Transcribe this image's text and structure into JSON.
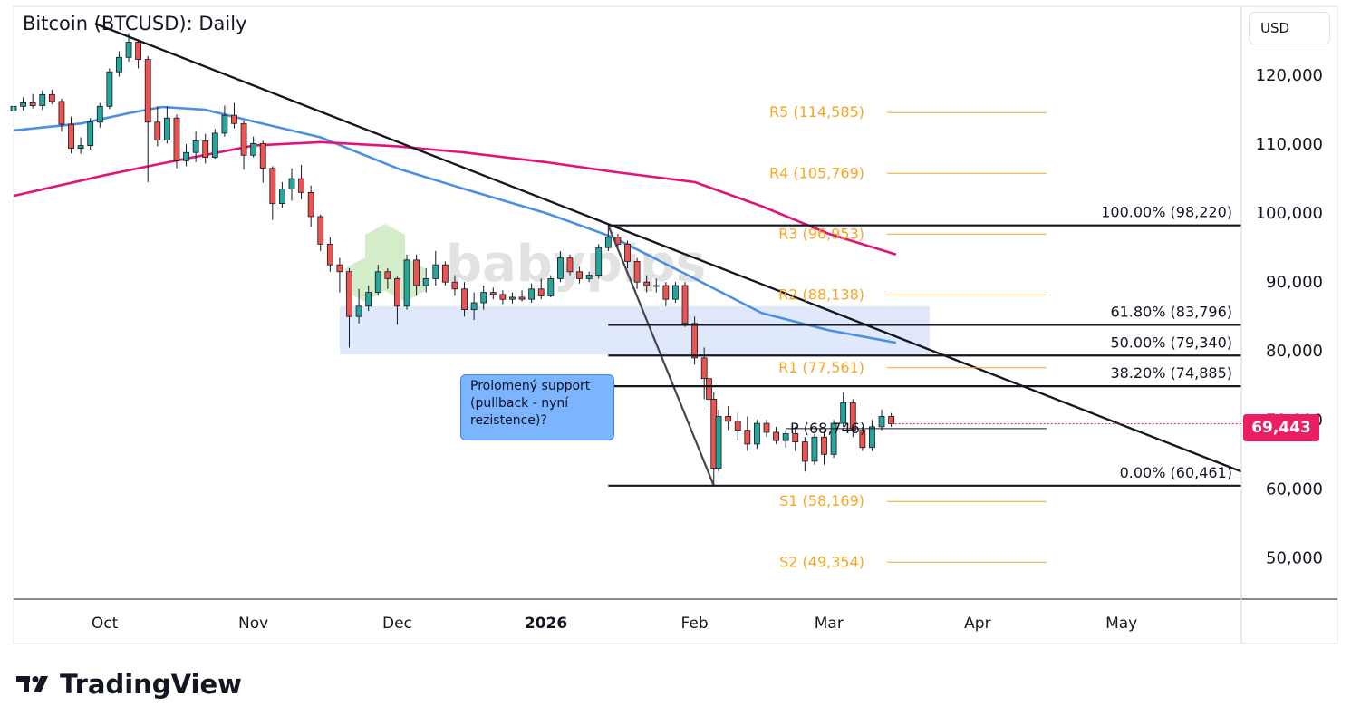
{
  "title": "Bitcoin (BTCUSD): Daily",
  "currency": "USD",
  "last_price_label": "69,443",
  "watermark": "babypips",
  "callout_lines": [
    "Prolomený support",
    "(pullback - nyní",
    "rezistence)?"
  ],
  "branding": "TradingView",
  "colors": {
    "up_candle": "#26a69a",
    "down_candle": "#ef5350",
    "sma_fast": "#4a90e2",
    "sma_slow": "#e0147a",
    "pivot": "#f5a623",
    "fib": "#131722",
    "support_zone": "#dde6fb",
    "price_badge": "#e91e63"
  },
  "chart_data": {
    "type": "candlestick",
    "title": "Bitcoin (BTCUSD): Daily",
    "ylim": [
      44000,
      130000
    ],
    "y_ticks": [
      50000,
      60000,
      70000,
      80000,
      90000,
      100000,
      110000,
      120000
    ],
    "y_tick_labels": [
      "50,000",
      "60,000",
      "70,000",
      "80,000",
      "90,000",
      "100,000",
      "110,000",
      "120,000"
    ],
    "x_tick_labels": [
      "Oct",
      "Nov",
      "Dec",
      "2026",
      "Feb",
      "Mar",
      "Apr",
      "May"
    ],
    "x_tick_dates": [
      "2025-10-01",
      "2025-11-01",
      "2025-12-01",
      "2026-01-01",
      "2026-02-01",
      "2026-03-01",
      "2026-04-01",
      "2026-05-01"
    ],
    "xlim": [
      "2025-09-12",
      "2026-05-26"
    ],
    "last_price": 69443,
    "candles": [
      {
        "date": "2025-09-12",
        "open": 114800,
        "high": 116500,
        "low": 114200,
        "close": 115500
      },
      {
        "date": "2025-09-14",
        "open": 115500,
        "high": 116800,
        "low": 114900,
        "close": 116000
      },
      {
        "date": "2025-09-16",
        "open": 116000,
        "high": 117300,
        "low": 115200,
        "close": 115600
      },
      {
        "date": "2025-09-18",
        "open": 115600,
        "high": 117800,
        "low": 115000,
        "close": 117200
      },
      {
        "date": "2025-09-20",
        "open": 117200,
        "high": 117900,
        "low": 115800,
        "close": 116200
      },
      {
        "date": "2025-09-22",
        "open": 116200,
        "high": 116600,
        "low": 111800,
        "close": 112900
      },
      {
        "date": "2025-09-24",
        "open": 112900,
        "high": 114000,
        "low": 108700,
        "close": 109400
      },
      {
        "date": "2025-09-26",
        "open": 109400,
        "high": 111000,
        "low": 108600,
        "close": 109800
      },
      {
        "date": "2025-09-28",
        "open": 109800,
        "high": 113800,
        "low": 109200,
        "close": 113200
      },
      {
        "date": "2025-09-30",
        "open": 113200,
        "high": 116000,
        "low": 112400,
        "close": 115500
      },
      {
        "date": "2025-10-02",
        "open": 115500,
        "high": 121000,
        "low": 115100,
        "close": 120500
      },
      {
        "date": "2025-10-04",
        "open": 120500,
        "high": 123500,
        "low": 119800,
        "close": 122600
      },
      {
        "date": "2025-10-06",
        "open": 122600,
        "high": 126100,
        "low": 122000,
        "close": 124800
      },
      {
        "date": "2025-10-08",
        "open": 124800,
        "high": 125200,
        "low": 121000,
        "close": 122300
      },
      {
        "date": "2025-10-10",
        "open": 122300,
        "high": 122800,
        "low": 104500,
        "close": 113200
      },
      {
        "date": "2025-10-12",
        "open": 113200,
        "high": 115500,
        "low": 109700,
        "close": 110600
      },
      {
        "date": "2025-10-14",
        "open": 110600,
        "high": 115500,
        "low": 110100,
        "close": 113800
      },
      {
        "date": "2025-10-16",
        "open": 113800,
        "high": 114300,
        "low": 106500,
        "close": 107600
      },
      {
        "date": "2025-10-18",
        "open": 107600,
        "high": 110000,
        "low": 106800,
        "close": 108800
      },
      {
        "date": "2025-10-20",
        "open": 108800,
        "high": 111900,
        "low": 107400,
        "close": 110500
      },
      {
        "date": "2025-10-22",
        "open": 110500,
        "high": 111500,
        "low": 107200,
        "close": 108100
      },
      {
        "date": "2025-10-24",
        "open": 108100,
        "high": 112200,
        "low": 107900,
        "close": 111600
      },
      {
        "date": "2025-10-26",
        "open": 111600,
        "high": 115600,
        "low": 111100,
        "close": 114200
      },
      {
        "date": "2025-10-28",
        "open": 114200,
        "high": 116000,
        "low": 112300,
        "close": 113000
      },
      {
        "date": "2025-10-30",
        "open": 113000,
        "high": 113400,
        "low": 106300,
        "close": 108400
      },
      {
        "date": "2025-11-01",
        "open": 108400,
        "high": 111100,
        "low": 108100,
        "close": 110100
      },
      {
        "date": "2025-11-03",
        "open": 110100,
        "high": 110500,
        "low": 104400,
        "close": 106500
      },
      {
        "date": "2025-11-05",
        "open": 106500,
        "high": 106800,
        "low": 99000,
        "close": 101400
      },
      {
        "date": "2025-11-07",
        "open": 101400,
        "high": 104500,
        "low": 100800,
        "close": 103500
      },
      {
        "date": "2025-11-09",
        "open": 103500,
        "high": 106500,
        "low": 101800,
        "close": 105000
      },
      {
        "date": "2025-11-11",
        "open": 105000,
        "high": 107000,
        "low": 102000,
        "close": 103000
      },
      {
        "date": "2025-11-13",
        "open": 103000,
        "high": 104000,
        "low": 98000,
        "close": 99500
      },
      {
        "date": "2025-11-15",
        "open": 99500,
        "high": 99800,
        "low": 94500,
        "close": 95500
      },
      {
        "date": "2025-11-17",
        "open": 95500,
        "high": 96500,
        "low": 91500,
        "close": 92500
      },
      {
        "date": "2025-11-19",
        "open": 92500,
        "high": 93500,
        "low": 88500,
        "close": 91500
      },
      {
        "date": "2025-11-21",
        "open": 91500,
        "high": 92000,
        "low": 80500,
        "close": 85000
      },
      {
        "date": "2025-11-23",
        "open": 85000,
        "high": 89000,
        "low": 84000,
        "close": 86500
      },
      {
        "date": "2025-11-25",
        "open": 86500,
        "high": 89500,
        "low": 85800,
        "close": 88500
      },
      {
        "date": "2025-11-27",
        "open": 88500,
        "high": 92500,
        "low": 88000,
        "close": 91500
      },
      {
        "date": "2025-11-29",
        "open": 91500,
        "high": 92000,
        "low": 89000,
        "close": 90500
      },
      {
        "date": "2025-12-01",
        "open": 90500,
        "high": 90800,
        "low": 83800,
        "close": 86500
      },
      {
        "date": "2025-12-03",
        "open": 86500,
        "high": 94000,
        "low": 86000,
        "close": 93200
      },
      {
        "date": "2025-12-05",
        "open": 93200,
        "high": 94000,
        "low": 88000,
        "close": 89500
      },
      {
        "date": "2025-12-07",
        "open": 89500,
        "high": 92000,
        "low": 88500,
        "close": 90500
      },
      {
        "date": "2025-12-09",
        "open": 90500,
        "high": 94500,
        "low": 89500,
        "close": 92500
      },
      {
        "date": "2025-12-11",
        "open": 92500,
        "high": 93000,
        "low": 89500,
        "close": 90000
      },
      {
        "date": "2025-12-13",
        "open": 90000,
        "high": 91000,
        "low": 88000,
        "close": 89000
      },
      {
        "date": "2025-12-15",
        "open": 89000,
        "high": 90000,
        "low": 85000,
        "close": 86000
      },
      {
        "date": "2025-12-17",
        "open": 86000,
        "high": 88500,
        "low": 84500,
        "close": 87000
      },
      {
        "date": "2025-12-19",
        "open": 87000,
        "high": 89500,
        "low": 86000,
        "close": 88500
      },
      {
        "date": "2025-12-21",
        "open": 88500,
        "high": 89200,
        "low": 87500,
        "close": 88200
      },
      {
        "date": "2025-12-23",
        "open": 88200,
        "high": 88800,
        "low": 86800,
        "close": 87500
      },
      {
        "date": "2025-12-25",
        "open": 87500,
        "high": 88500,
        "low": 86900,
        "close": 87800
      },
      {
        "date": "2025-12-27",
        "open": 87800,
        "high": 88800,
        "low": 87200,
        "close": 87500
      },
      {
        "date": "2025-12-29",
        "open": 87500,
        "high": 89800,
        "low": 87000,
        "close": 89000
      },
      {
        "date": "2025-12-31",
        "open": 89000,
        "high": 90500,
        "low": 87500,
        "close": 88000
      },
      {
        "date": "2026-01-02",
        "open": 88000,
        "high": 91000,
        "low": 87800,
        "close": 90500
      },
      {
        "date": "2026-01-04",
        "open": 90500,
        "high": 94500,
        "low": 90000,
        "close": 93500
      },
      {
        "date": "2026-01-06",
        "open": 93500,
        "high": 94000,
        "low": 91000,
        "close": 91500
      },
      {
        "date": "2026-01-08",
        "open": 91500,
        "high": 92200,
        "low": 89800,
        "close": 90500
      },
      {
        "date": "2026-01-10",
        "open": 90500,
        "high": 91500,
        "low": 90000,
        "close": 91000
      },
      {
        "date": "2026-01-12",
        "open": 91000,
        "high": 95500,
        "low": 90500,
        "close": 95000
      },
      {
        "date": "2026-01-14",
        "open": 95000,
        "high": 97900,
        "low": 94500,
        "close": 96500
      },
      {
        "date": "2026-01-16",
        "open": 96500,
        "high": 97000,
        "low": 94800,
        "close": 95500
      },
      {
        "date": "2026-01-18",
        "open": 95500,
        "high": 96000,
        "low": 92000,
        "close": 93000
      },
      {
        "date": "2026-01-20",
        "open": 93000,
        "high": 93500,
        "low": 89000,
        "close": 90000
      },
      {
        "date": "2026-01-22",
        "open": 90000,
        "high": 91000,
        "low": 88500,
        "close": 89500
      },
      {
        "date": "2026-01-24",
        "open": 89500,
        "high": 90500,
        "low": 88500,
        "close": 89500
      },
      {
        "date": "2026-01-26",
        "open": 89500,
        "high": 90000,
        "low": 86500,
        "close": 87500
      },
      {
        "date": "2026-01-28",
        "open": 87500,
        "high": 90000,
        "low": 87000,
        "close": 89500
      },
      {
        "date": "2026-01-30",
        "open": 89500,
        "high": 90000,
        "low": 83500,
        "close": 84000
      },
      {
        "date": "2026-02-01",
        "open": 84000,
        "high": 85000,
        "low": 78000,
        "close": 79000
      },
      {
        "date": "2026-02-03",
        "open": 79000,
        "high": 80500,
        "low": 73000,
        "close": 76000
      },
      {
        "date": "2026-02-04",
        "open": 76000,
        "high": 77000,
        "low": 71500,
        "close": 73000
      },
      {
        "date": "2026-02-05",
        "open": 73000,
        "high": 74000,
        "low": 60461,
        "close": 63000
      },
      {
        "date": "2026-02-06",
        "open": 63000,
        "high": 71500,
        "low": 62500,
        "close": 70500
      },
      {
        "date": "2026-02-08",
        "open": 70500,
        "high": 72000,
        "low": 68500,
        "close": 69800
      },
      {
        "date": "2026-02-10",
        "open": 69800,
        "high": 71000,
        "low": 67000,
        "close": 68500
      },
      {
        "date": "2026-02-12",
        "open": 68500,
        "high": 70500,
        "low": 65500,
        "close": 66500
      },
      {
        "date": "2026-02-14",
        "open": 66500,
        "high": 70000,
        "low": 65800,
        "close": 69500
      },
      {
        "date": "2026-02-16",
        "open": 69500,
        "high": 70000,
        "low": 67500,
        "close": 68200
      },
      {
        "date": "2026-02-18",
        "open": 68200,
        "high": 69000,
        "low": 66500,
        "close": 67000
      },
      {
        "date": "2026-02-20",
        "open": 67000,
        "high": 68500,
        "low": 66000,
        "close": 68000
      },
      {
        "date": "2026-02-22",
        "open": 68000,
        "high": 69000,
        "low": 65500,
        "close": 66800
      },
      {
        "date": "2026-02-24",
        "open": 66800,
        "high": 67500,
        "low": 62500,
        "close": 64000
      },
      {
        "date": "2026-02-26",
        "open": 64000,
        "high": 68000,
        "low": 63500,
        "close": 67500
      },
      {
        "date": "2026-02-28",
        "open": 67500,
        "high": 68500,
        "low": 63500,
        "close": 65000
      },
      {
        "date": "2026-03-02",
        "open": 65000,
        "high": 70000,
        "low": 64500,
        "close": 69500
      },
      {
        "date": "2026-03-04",
        "open": 69500,
        "high": 74000,
        "low": 69000,
        "close": 72500
      },
      {
        "date": "2026-03-06",
        "open": 72500,
        "high": 73000,
        "low": 67500,
        "close": 68500
      },
      {
        "date": "2026-03-08",
        "open": 68500,
        "high": 69000,
        "low": 65500,
        "close": 66000
      },
      {
        "date": "2026-03-10",
        "open": 66000,
        "high": 70000,
        "low": 65500,
        "close": 69000
      },
      {
        "date": "2026-03-12",
        "open": 69000,
        "high": 71500,
        "low": 68500,
        "close": 70500
      },
      {
        "date": "2026-03-14",
        "open": 70500,
        "high": 71000,
        "low": 69000,
        "close": 69443
      }
    ],
    "series": [
      {
        "name": "",
        "color": "#4a90e2",
        "points": [
          {
            "date": "2025-09-12",
            "value": 112000
          },
          {
            "date": "2025-09-26",
            "value": 113000
          },
          {
            "date": "2025-10-06",
            "value": 114500
          },
          {
            "date": "2025-10-13",
            "value": 115400
          },
          {
            "date": "2025-10-22",
            "value": 115000
          },
          {
            "date": "2025-11-01",
            "value": 113300
          },
          {
            "date": "2025-11-15",
            "value": 111000
          },
          {
            "date": "2025-12-01",
            "value": 106500
          },
          {
            "date": "2025-12-15",
            "value": 103500
          },
          {
            "date": "2026-01-01",
            "value": 100000
          },
          {
            "date": "2026-01-15",
            "value": 96500
          },
          {
            "date": "2026-02-01",
            "value": 90500
          },
          {
            "date": "2026-02-15",
            "value": 85500
          },
          {
            "date": "2026-03-01",
            "value": 83000
          },
          {
            "date": "2026-03-15",
            "value": 81200
          }
        ]
      },
      {
        "name": "",
        "color": "#e0147a",
        "points": [
          {
            "date": "2025-09-12",
            "value": 102500
          },
          {
            "date": "2025-10-01",
            "value": 105500
          },
          {
            "date": "2025-10-15",
            "value": 107500
          },
          {
            "date": "2025-11-01",
            "value": 109800
          },
          {
            "date": "2025-11-15",
            "value": 110300
          },
          {
            "date": "2025-12-01",
            "value": 109700
          },
          {
            "date": "2025-12-15",
            "value": 108800
          },
          {
            "date": "2026-01-01",
            "value": 107400
          },
          {
            "date": "2026-01-15",
            "value": 106000
          },
          {
            "date": "2026-02-01",
            "value": 104500
          },
          {
            "date": "2026-02-15",
            "value": 101000
          },
          {
            "date": "2026-03-01",
            "value": 97000
          },
          {
            "date": "2026-03-15",
            "value": 94000
          }
        ]
      }
    ],
    "pivot_levels": [
      {
        "label": "R5 (114,585)",
        "value": 114585
      },
      {
        "label": "R4 (105,769)",
        "value": 105769
      },
      {
        "label": "R3 (96,953)",
        "value": 96953
      },
      {
        "label": "R2 (88,138)",
        "value": 88138
      },
      {
        "label": "R1 (77,561)",
        "value": 77561
      },
      {
        "label": "P (68,746)",
        "value": 68746
      },
      {
        "label": "S1 (58,169)",
        "value": 58169
      },
      {
        "label": "S2 (49,354)",
        "value": 49354
      }
    ],
    "pivot_start": "2026-02-14",
    "pivot_end": "2026-04-01",
    "fib_levels": [
      {
        "label": "100.00% (98,220)",
        "value": 98220
      },
      {
        "label": "61.80% (83,796)",
        "value": 83796
      },
      {
        "label": "50.00% (79,340)",
        "value": 79340
      },
      {
        "label": "38.20% (74,885)",
        "value": 74885
      },
      {
        "label": "0.00% (60,461)",
        "value": 60461
      }
    ],
    "fib_start": "2026-01-14",
    "fib_swing": [
      {
        "date": "2026-01-14",
        "value": 98220
      },
      {
        "date": "2026-02-05",
        "value": 60461
      }
    ],
    "trendline": [
      {
        "date": "2025-09-29",
        "value": 127500
      },
      {
        "date": "2026-05-26",
        "value": 62500
      }
    ],
    "support_zone": {
      "from": "2025-11-19",
      "to": "2026-03-22",
      "low": 79500,
      "high": 86500
    }
  }
}
